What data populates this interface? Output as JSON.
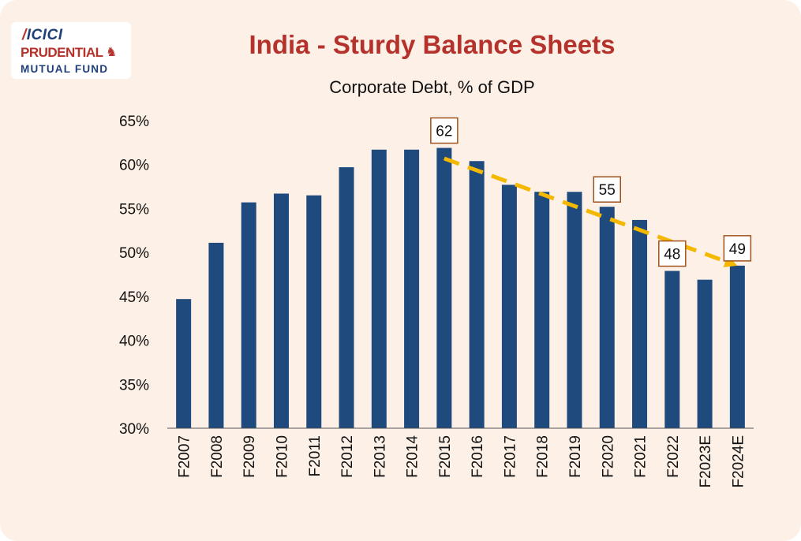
{
  "logo": {
    "line1": "ICICI",
    "line2": "PRUDENTIAL",
    "line3": "MUTUAL FUND"
  },
  "colors": {
    "background": "#fdf0e6",
    "bar": "#1f4a7d",
    "title": "#b5322c",
    "trend": "#f5b800",
    "label_border": "#a0521c"
  },
  "chart_data": {
    "type": "bar",
    "title": "India - Sturdy Balance Sheets",
    "subtitle": "Corporate Debt, % of GDP",
    "categories": [
      "F2007",
      "F2008",
      "F2009",
      "F2010",
      "F2011",
      "F2012",
      "F2013",
      "F2014",
      "F2015",
      "F2016",
      "F2017",
      "F2018",
      "F2019",
      "F2020",
      "F2021",
      "F2022",
      "F2023E",
      "F2024E"
    ],
    "values": [
      44.7,
      51.1,
      55.7,
      56.7,
      56.5,
      59.7,
      61.7,
      61.7,
      61.9,
      60.4,
      57.7,
      56.9,
      56.9,
      55.2,
      53.7,
      47.9,
      46.9,
      48.5
    ],
    "ylim": [
      30,
      65
    ],
    "yticks": [
      "30%",
      "35%",
      "40%",
      "45%",
      "50%",
      "55%",
      "60%",
      "65%"
    ],
    "grid": false,
    "annotations": [
      {
        "category": "F2015",
        "label": "62"
      },
      {
        "category": "F2020",
        "label": "55"
      },
      {
        "category": "F2022",
        "label": "48"
      },
      {
        "category": "F2024E",
        "label": "49"
      }
    ],
    "trendline": {
      "from_category": "F2015",
      "from_value": 60.7,
      "to_category": "F2024E",
      "to_value": 48.5
    }
  }
}
